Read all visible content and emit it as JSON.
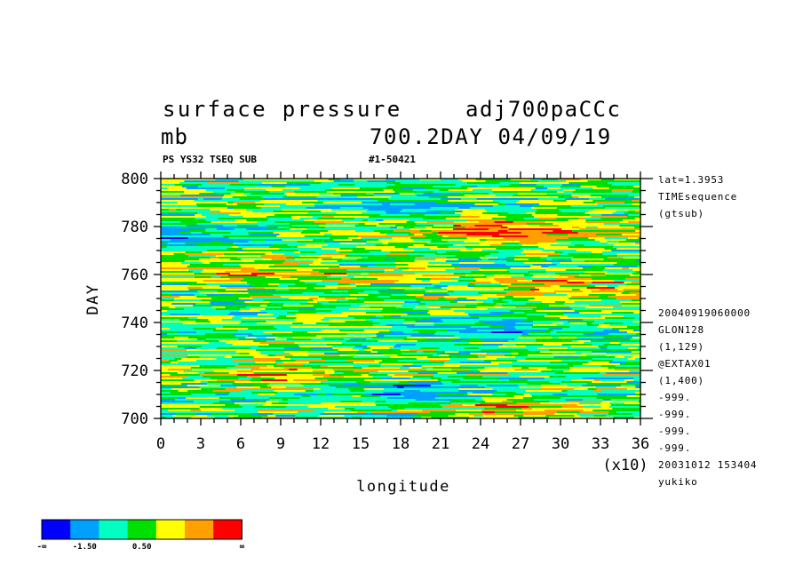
{
  "header": {
    "title_left": "surface pressure",
    "title_right": "adj700paCCc",
    "unit": "mb",
    "run_info": "700.2DAY 04/09/19",
    "sub_left": "PS YS32 TSEQ SUB",
    "sub_right": "#1-50421"
  },
  "side_info": {
    "top": [
      "lat=1.3953",
      "TIMEsequence",
      "(gtsub)"
    ],
    "bottom": [
      "20040919060000",
      "GLON128",
      "(1,129)",
      "@EXTAX01",
      "(1,400)",
      "-999.",
      "-999.",
      "-999.",
      "-999.",
      "20031012 153404",
      "yukiko"
    ]
  },
  "chart_data": {
    "type": "heatmap",
    "title": "surface pressure",
    "xlabel": "longitude",
    "ylabel": "DAY",
    "x_multiplier_label": "(x10)",
    "xlim": [
      0,
      36
    ],
    "ylim": [
      700,
      800
    ],
    "x_ticks": [
      "0",
      "3",
      "6",
      "9",
      "12",
      "15",
      "18",
      "21",
      "24",
      "27",
      "30",
      "33",
      "36"
    ],
    "y_ticks": [
      "700",
      "720",
      "740",
      "760",
      "780",
      "800"
    ],
    "colorbar": {
      "colors": [
        "#0000ff",
        "#00a0ff",
        "#00ffc0",
        "#00e000",
        "#ffff00",
        "#ffa000",
        "#ff0000"
      ],
      "labels": [
        "-∞",
        "-1.50",
        "0.50",
        "∞"
      ]
    },
    "regions": [
      {
        "x": 24,
        "y": 778,
        "sign": "positive"
      },
      {
        "x": 29,
        "y": 779,
        "sign": "positive"
      },
      {
        "x": 9,
        "y": 762,
        "sign": "positive"
      },
      {
        "x": 9,
        "y": 719,
        "sign": "positive"
      },
      {
        "x": 30,
        "y": 754,
        "sign": "positive"
      },
      {
        "x": 26,
        "y": 705,
        "sign": "positive"
      },
      {
        "x": 19,
        "y": 788,
        "sign": "negative"
      },
      {
        "x": 2,
        "y": 776,
        "sign": "negative"
      },
      {
        "x": 24,
        "y": 737,
        "sign": "negative"
      },
      {
        "x": 19,
        "y": 711,
        "sign": "negative"
      }
    ]
  }
}
